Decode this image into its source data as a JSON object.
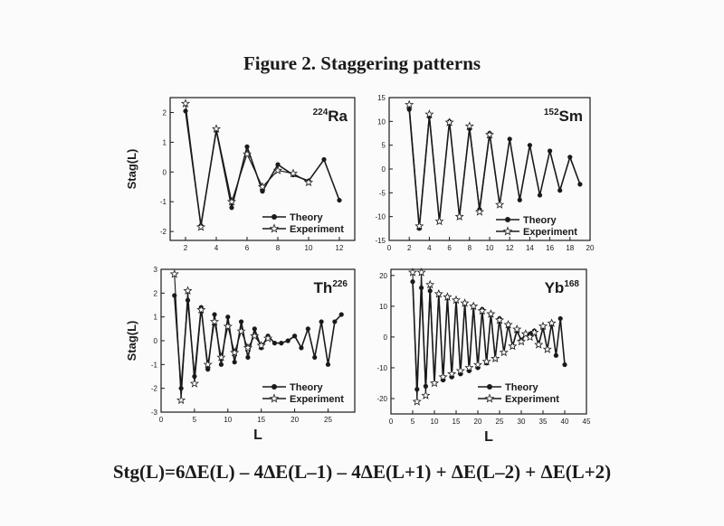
{
  "title": "Figure 2. Staggering patterns",
  "formula": "Stg(L)=6ΔE(L) – 4ΔE(L–1) – 4ΔE(L+1) + ΔE(L–2) + ΔE(L+2)",
  "colors": {
    "ink": "#1a1a1a",
    "paper": "#fbfbfb"
  },
  "chart_data": [
    {
      "type": "line",
      "nucleus": {
        "mass": "224",
        "element": "Ra",
        "mass_position": "prefix"
      },
      "ylabel": "Stag(L)",
      "xlabel": "",
      "xlim": [
        1,
        13
      ],
      "ylim": [
        -2.3,
        2.5
      ],
      "xticks": [
        2,
        4,
        6,
        8,
        10,
        12
      ],
      "yticks": [
        -2,
        -1,
        0,
        1,
        2
      ],
      "legend_position": "bottom-right",
      "series": [
        {
          "name": "Theory",
          "marker": "circle",
          "x": [
            2,
            3,
            4,
            5,
            6,
            7,
            8,
            9,
            10,
            11,
            12
          ],
          "y": [
            2.05,
            -1.8,
            1.4,
            -1.2,
            0.85,
            -0.65,
            0.25,
            -0.1,
            -0.3,
            0.42,
            -0.95
          ]
        },
        {
          "name": "Experiment",
          "marker": "star",
          "x": [
            2,
            3,
            4,
            5,
            6,
            7,
            8,
            9,
            10
          ],
          "y": [
            2.3,
            -1.85,
            1.45,
            -1.0,
            0.6,
            -0.5,
            0.05,
            -0.05,
            -0.35
          ]
        }
      ]
    },
    {
      "type": "line",
      "nucleus": {
        "mass": "152",
        "element": "Sm",
        "mass_position": "prefix"
      },
      "ylabel": "",
      "xlabel": "",
      "xlim": [
        0,
        20
      ],
      "ylim": [
        -15,
        15
      ],
      "xticks": [
        0,
        2,
        4,
        6,
        8,
        10,
        12,
        14,
        16,
        18,
        20
      ],
      "yticks": [
        -15,
        -10,
        -5,
        0,
        5,
        10,
        15
      ],
      "legend_position": "bottom-right",
      "series": [
        {
          "name": "Theory",
          "marker": "circle",
          "x": [
            2,
            3,
            4,
            5,
            6,
            7,
            8,
            9,
            10,
            11,
            12,
            13,
            14,
            15,
            16,
            17,
            18,
            19
          ],
          "y": [
            12.5,
            -12.5,
            11,
            -11,
            10,
            -10,
            8.5,
            -8.5,
            7.5,
            -7.5,
            6.3,
            -6.5,
            5,
            -5.5,
            3.8,
            -4.5,
            2.5,
            -3.2
          ]
        },
        {
          "name": "Experiment",
          "marker": "star",
          "x": [
            2,
            3,
            4,
            5,
            6,
            7,
            8,
            9,
            10,
            11
          ],
          "y": [
            13.5,
            -12,
            11.5,
            -11,
            9.8,
            -10,
            9,
            -9,
            7.2,
            -7.5
          ]
        }
      ]
    },
    {
      "type": "line",
      "nucleus": {
        "mass": "226",
        "element": "Th",
        "mass_position": "suffix"
      },
      "ylabel": "Stag(L)",
      "xlabel": "L",
      "xlim": [
        0,
        29
      ],
      "ylim": [
        -3,
        3
      ],
      "xticks": [
        0,
        5,
        10,
        15,
        20,
        25
      ],
      "yticks": [
        -3,
        -2,
        -1,
        0,
        1,
        2,
        3
      ],
      "legend_position": "bottom-right",
      "series": [
        {
          "name": "Theory",
          "marker": "circle",
          "x": [
            2,
            3,
            4,
            5,
            6,
            7,
            8,
            9,
            10,
            11,
            12,
            13,
            14,
            15,
            16,
            17,
            18,
            19,
            20,
            21,
            22,
            23,
            24,
            25,
            26,
            27
          ],
          "y": [
            1.9,
            -2.0,
            1.7,
            -1.5,
            1.4,
            -1.2,
            1.1,
            -1.0,
            1.0,
            -0.9,
            0.8,
            -0.7,
            0.5,
            -0.3,
            0.2,
            -0.1,
            -0.1,
            0.0,
            0.2,
            -0.3,
            0.5,
            -0.7,
            0.8,
            -1.0,
            0.8,
            1.1
          ]
        },
        {
          "name": "Experiment",
          "marker": "star",
          "x": [
            2,
            3,
            4,
            5,
            6,
            7,
            8,
            9,
            10,
            11,
            12,
            13,
            14,
            15,
            16
          ],
          "y": [
            2.8,
            -2.5,
            2.1,
            -1.8,
            1.3,
            -1.0,
            0.8,
            -0.7,
            0.6,
            -0.5,
            0.4,
            -0.3,
            0.2,
            -0.2,
            0.1
          ]
        }
      ]
    },
    {
      "type": "line",
      "nucleus": {
        "mass": "168",
        "element": "Yb",
        "mass_position": "suffix"
      },
      "ylabel": "",
      "xlabel": "L",
      "xlim": [
        0,
        45
      ],
      "ylim": [
        -25,
        22
      ],
      "xticks": [
        0,
        5,
        10,
        15,
        20,
        25,
        30,
        35,
        40,
        45
      ],
      "yticks": [
        -20,
        -10,
        0,
        10,
        20
      ],
      "legend_position": "bottom-right",
      "series": [
        {
          "name": "Theory",
          "marker": "circle",
          "x": [
            5,
            6,
            7,
            8,
            9,
            10,
            11,
            12,
            13,
            14,
            15,
            16,
            17,
            18,
            19,
            20,
            21,
            22,
            23,
            24,
            25,
            26,
            27,
            28,
            29,
            30,
            31,
            32,
            33,
            34,
            35,
            36,
            37,
            38,
            39,
            40
          ],
          "y": [
            18,
            -17,
            16,
            -16,
            15,
            -15,
            14,
            -14,
            13,
            -13,
            12,
            -12,
            11,
            -11,
            10,
            -10,
            9,
            -8.5,
            7.5,
            -7,
            6,
            -5,
            4,
            -3,
            2,
            -1,
            1,
            1,
            2,
            -2.5,
            3,
            -4,
            4.5,
            -6,
            6,
            -9
          ]
        },
        {
          "name": "Experiment",
          "marker": "star",
          "x": [
            5,
            6,
            7,
            8,
            9,
            10,
            11,
            12,
            13,
            14,
            15,
            16,
            17,
            18,
            19,
            20,
            21,
            22,
            23,
            24,
            25,
            26,
            27,
            28,
            29,
            30,
            31,
            32,
            33,
            34,
            35,
            36,
            37
          ],
          "y": [
            21,
            -21,
            21,
            -19,
            17,
            -15,
            14,
            -13,
            13,
            -12,
            12,
            -11,
            11,
            -10,
            10,
            -9,
            8.5,
            -8,
            7.5,
            -7,
            5.5,
            -5,
            4,
            -3,
            2.5,
            -1.5,
            1,
            0,
            1.5,
            -2.5,
            3.5,
            -4,
            4.5
          ]
        }
      ]
    }
  ]
}
